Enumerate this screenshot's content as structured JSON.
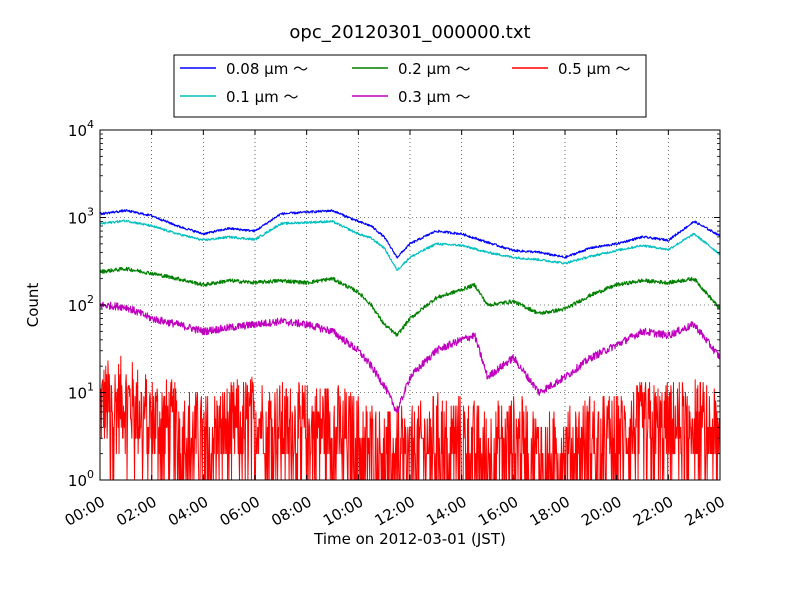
{
  "chart_data": {
    "type": "line",
    "title": "opc_20120301_000000.txt",
    "xlabel": "Time on 2012-03-01 (JST)",
    "ylabel": "Count",
    "y_scale": "log",
    "ylim": [
      1,
      10000
    ],
    "xlim_hours": [
      0,
      24
    ],
    "grid": true,
    "legend_position": "top",
    "x_ticks": [
      "00:00",
      "02:00",
      "04:00",
      "06:00",
      "08:00",
      "10:00",
      "12:00",
      "14:00",
      "16:00",
      "18:00",
      "20:00",
      "22:00",
      "24:00"
    ],
    "y_ticks": [
      {
        "base": "10",
        "exp": "0",
        "value": 1
      },
      {
        "base": "10",
        "exp": "1",
        "value": 10
      },
      {
        "base": "10",
        "exp": "2",
        "value": 100
      },
      {
        "base": "10",
        "exp": "3",
        "value": 1000
      },
      {
        "base": "10",
        "exp": "4",
        "value": 10000
      }
    ],
    "series": [
      {
        "name": "0.08 μm ～",
        "color": "#0000ff",
        "noise": 0.03,
        "points": [
          [
            0,
            1100
          ],
          [
            1,
            1200
          ],
          [
            2,
            1050
          ],
          [
            3,
            800
          ],
          [
            4,
            650
          ],
          [
            5,
            750
          ],
          [
            6,
            700
          ],
          [
            7,
            1100
          ],
          [
            8,
            1150
          ],
          [
            9,
            1200
          ],
          [
            10,
            900
          ],
          [
            10.5,
            800
          ],
          [
            11,
            600
          ],
          [
            11.5,
            350
          ],
          [
            12,
            500
          ],
          [
            13,
            700
          ],
          [
            14,
            650
          ],
          [
            15,
            520
          ],
          [
            16,
            420
          ],
          [
            17,
            400
          ],
          [
            18,
            350
          ],
          [
            19,
            450
          ],
          [
            20,
            500
          ],
          [
            21,
            600
          ],
          [
            22,
            550
          ],
          [
            23,
            900
          ],
          [
            24,
            620
          ]
        ]
      },
      {
        "name": "0.1 μm ～",
        "color": "#00bfbf",
        "noise": 0.03,
        "points": [
          [
            0,
            850
          ],
          [
            1,
            920
          ],
          [
            2,
            800
          ],
          [
            3,
            650
          ],
          [
            4,
            550
          ],
          [
            5,
            600
          ],
          [
            6,
            560
          ],
          [
            7,
            850
          ],
          [
            8,
            880
          ],
          [
            9,
            900
          ],
          [
            10,
            650
          ],
          [
            10.5,
            580
          ],
          [
            11,
            450
          ],
          [
            11.5,
            250
          ],
          [
            12,
            350
          ],
          [
            13,
            500
          ],
          [
            14,
            480
          ],
          [
            15,
            400
          ],
          [
            16,
            350
          ],
          [
            17,
            330
          ],
          [
            18,
            300
          ],
          [
            19,
            360
          ],
          [
            20,
            420
          ],
          [
            21,
            480
          ],
          [
            22,
            430
          ],
          [
            23,
            650
          ],
          [
            24,
            380
          ]
        ]
      },
      {
        "name": "0.2 μm ～",
        "color": "#008000",
        "noise": 0.05,
        "points": [
          [
            0,
            240
          ],
          [
            1,
            260
          ],
          [
            2,
            230
          ],
          [
            3,
            200
          ],
          [
            4,
            170
          ],
          [
            5,
            190
          ],
          [
            6,
            180
          ],
          [
            7,
            190
          ],
          [
            8,
            180
          ],
          [
            9,
            200
          ],
          [
            10,
            140
          ],
          [
            10.5,
            100
          ],
          [
            11,
            60
          ],
          [
            11.5,
            45
          ],
          [
            12,
            70
          ],
          [
            13,
            120
          ],
          [
            14,
            150
          ],
          [
            14.5,
            170
          ],
          [
            15,
            100
          ],
          [
            16,
            110
          ],
          [
            17,
            80
          ],
          [
            18,
            90
          ],
          [
            19,
            130
          ],
          [
            20,
            170
          ],
          [
            21,
            190
          ],
          [
            22,
            180
          ],
          [
            23,
            200
          ],
          [
            24,
            90
          ]
        ]
      },
      {
        "name": "0.3 μm ～",
        "color": "#bf00bf",
        "noise": 0.1,
        "points": [
          [
            0,
            100
          ],
          [
            1,
            95
          ],
          [
            2,
            70
          ],
          [
            3,
            60
          ],
          [
            4,
            50
          ],
          [
            5,
            55
          ],
          [
            6,
            60
          ],
          [
            7,
            65
          ],
          [
            8,
            60
          ],
          [
            9,
            50
          ],
          [
            10,
            30
          ],
          [
            10.5,
            20
          ],
          [
            11,
            12
          ],
          [
            11.5,
            6
          ],
          [
            12,
            15
          ],
          [
            13,
            30
          ],
          [
            14,
            40
          ],
          [
            14.5,
            45
          ],
          [
            15,
            15
          ],
          [
            16,
            25
          ],
          [
            17,
            10
          ],
          [
            18,
            15
          ],
          [
            19,
            25
          ],
          [
            20,
            35
          ],
          [
            21,
            50
          ],
          [
            22,
            45
          ],
          [
            23,
            60
          ],
          [
            24,
            25
          ]
        ]
      },
      {
        "name": "0.5 μm ～",
        "color": "#ff0000",
        "noise": 0.55,
        "points": [
          [
            0,
            7
          ],
          [
            1,
            8
          ],
          [
            2,
            5
          ],
          [
            3,
            4
          ],
          [
            4,
            3
          ],
          [
            5,
            4
          ],
          [
            6,
            5
          ],
          [
            7,
            4
          ],
          [
            8,
            4
          ],
          [
            9,
            4
          ],
          [
            10,
            3
          ],
          [
            11,
            2
          ],
          [
            12,
            2
          ],
          [
            13,
            3
          ],
          [
            14,
            3
          ],
          [
            15,
            2
          ],
          [
            16,
            3
          ],
          [
            17,
            2
          ],
          [
            18,
            2
          ],
          [
            19,
            3
          ],
          [
            20,
            3
          ],
          [
            21,
            4
          ],
          [
            22,
            4
          ],
          [
            23,
            5
          ],
          [
            24,
            3
          ]
        ]
      }
    ]
  }
}
